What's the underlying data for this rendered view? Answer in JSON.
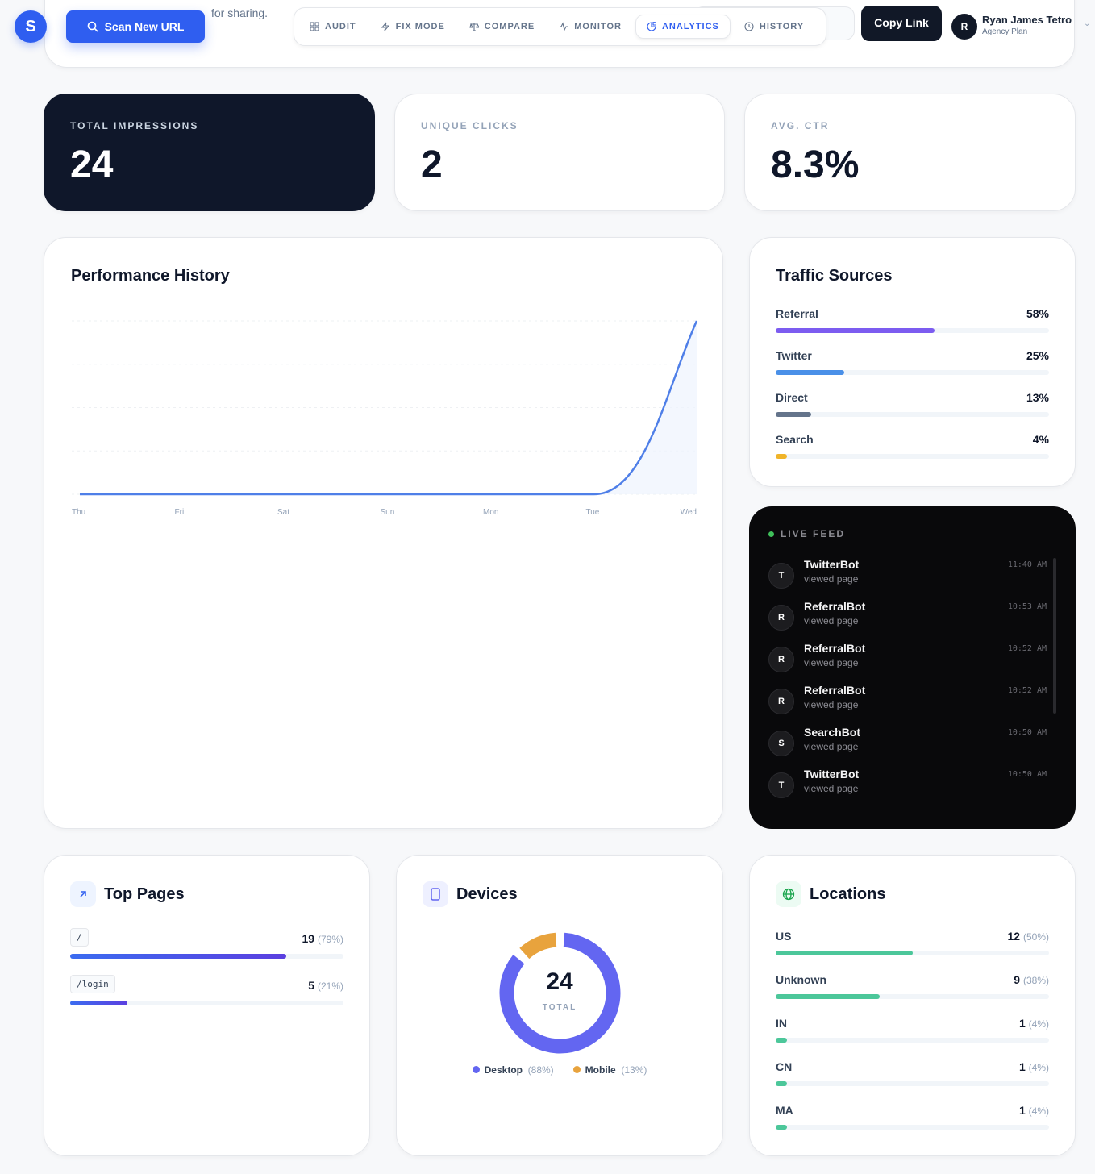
{
  "header": {
    "logo": "S",
    "subtitle": "for sharing.",
    "scan_label": "Scan New URL",
    "tabs": [
      {
        "label": "AUDIT",
        "icon": "grid-icon"
      },
      {
        "label": "FIX MODE",
        "icon": "bolt-icon"
      },
      {
        "label": "COMPARE",
        "icon": "scale-icon"
      },
      {
        "label": "MONITOR",
        "icon": "pulse-icon"
      },
      {
        "label": "ANALYTICS",
        "icon": "pie-icon",
        "active": true
      },
      {
        "label": "HISTORY",
        "icon": "clock-icon"
      }
    ],
    "user": {
      "initial": "R",
      "name": "Ryan James Tetro",
      "plan": "Agency Plan"
    },
    "copy_label": "Copy Link"
  },
  "stats": [
    {
      "label": "TOTAL IMPRESSIONS",
      "value": "24"
    },
    {
      "label": "UNIQUE CLICKS",
      "value": "2"
    },
    {
      "label": "AVG. CTR",
      "value": "8.3%"
    }
  ],
  "performance": {
    "title": "Performance History"
  },
  "chart_data": {
    "type": "area",
    "categories": [
      "Thu",
      "Fri",
      "Sat",
      "Sun",
      "Mon",
      "Tue",
      "Wed"
    ],
    "values": [
      0,
      0,
      0,
      0,
      0,
      0,
      24
    ],
    "color": "#4f7fe8",
    "grid": true
  },
  "traffic": {
    "title": "Traffic Sources",
    "items": [
      {
        "name": "Referral",
        "pct": "58%",
        "value": 58,
        "color": "#7c5cf0"
      },
      {
        "name": "Twitter",
        "pct": "25%",
        "value": 25,
        "color": "#4a90e8"
      },
      {
        "name": "Direct",
        "pct": "13%",
        "value": 13,
        "color": "#64748b"
      },
      {
        "name": "Search",
        "pct": "4%",
        "value": 4,
        "color": "#f0b429"
      }
    ]
  },
  "feed": {
    "title": "LIVE FEED",
    "items": [
      {
        "initial": "T",
        "name": "TwitterBot",
        "action": "viewed page",
        "time": "11:40 AM"
      },
      {
        "initial": "R",
        "name": "ReferralBot",
        "action": "viewed page",
        "time": "10:53 AM"
      },
      {
        "initial": "R",
        "name": "ReferralBot",
        "action": "viewed page",
        "time": "10:52 AM"
      },
      {
        "initial": "R",
        "name": "ReferralBot",
        "action": "viewed page",
        "time": "10:52 AM"
      },
      {
        "initial": "S",
        "name": "SearchBot",
        "action": "viewed page",
        "time": "10:50 AM"
      },
      {
        "initial": "T",
        "name": "TwitterBot",
        "action": "viewed page",
        "time": "10:50 AM"
      }
    ]
  },
  "top_pages": {
    "title": "Top Pages",
    "items": [
      {
        "path": "/",
        "count": "19",
        "pct": "(79%)",
        "value": 79
      },
      {
        "path": "/login",
        "count": "5",
        "pct": "(21%)",
        "value": 21
      }
    ]
  },
  "devices": {
    "title": "Devices",
    "total": "24",
    "total_label": "TOTAL",
    "items": [
      {
        "name": "Desktop",
        "pct": "(88%)",
        "value": 88,
        "color": "#6366f1"
      },
      {
        "name": "Mobile",
        "pct": "(13%)",
        "value": 13,
        "color": "#e8a33d"
      }
    ]
  },
  "locations": {
    "title": "Locations",
    "items": [
      {
        "name": "US",
        "count": "12",
        "pct": "(50%)",
        "value": 50
      },
      {
        "name": "Unknown",
        "count": "9",
        "pct": "(38%)",
        "value": 38
      },
      {
        "name": "IN",
        "count": "1",
        "pct": "(4%)",
        "value": 4
      },
      {
        "name": "CN",
        "count": "1",
        "pct": "(4%)",
        "value": 4
      },
      {
        "name": "MA",
        "count": "1",
        "pct": "(4%)",
        "value": 4
      }
    ],
    "color": "#4cc79a"
  }
}
